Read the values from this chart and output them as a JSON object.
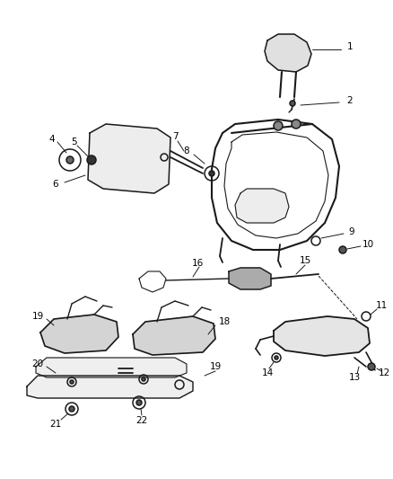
{
  "background_color": "#ffffff",
  "line_color": "#1a1a1a",
  "label_color": "#000000",
  "fig_width": 4.38,
  "fig_height": 5.33,
  "dpi": 100,
  "gray_fill": "#aaaaaa",
  "light_fill": "#cccccc"
}
